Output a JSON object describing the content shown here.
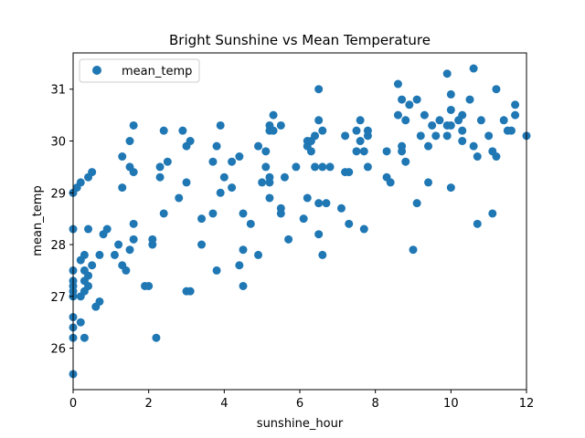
{
  "chart_data": {
    "type": "scatter",
    "title": "Bright Sunshine vs Mean Temperature",
    "xlabel": "sunshine_hour",
    "ylabel": "mean_temp",
    "xlim": [
      0,
      12
    ],
    "ylim": [
      25.2,
      31.7
    ],
    "xticks": [
      0,
      2,
      4,
      6,
      8,
      10,
      12
    ],
    "yticks": [
      26,
      27,
      28,
      29,
      30,
      31
    ],
    "grid": false,
    "legend": {
      "position": "top-left",
      "entries": [
        "mean_temp"
      ]
    },
    "color": "#1f77b4",
    "series": [
      {
        "name": "mean_temp",
        "points": [
          [
            0.0,
            25.5
          ],
          [
            0.0,
            26.2
          ],
          [
            0.0,
            26.4
          ],
          [
            0.0,
            26.6
          ],
          [
            0.0,
            27.0
          ],
          [
            0.0,
            27.1
          ],
          [
            0.0,
            27.2
          ],
          [
            0.0,
            27.3
          ],
          [
            0.0,
            27.5
          ],
          [
            0.0,
            28.3
          ],
          [
            0.0,
            29.0
          ],
          [
            0.1,
            29.1
          ],
          [
            0.2,
            29.2
          ],
          [
            0.2,
            27.7
          ],
          [
            0.2,
            27.0
          ],
          [
            0.2,
            26.5
          ],
          [
            0.3,
            26.2
          ],
          [
            0.3,
            27.1
          ],
          [
            0.3,
            27.3
          ],
          [
            0.3,
            27.5
          ],
          [
            0.3,
            27.8
          ],
          [
            0.4,
            28.3
          ],
          [
            0.4,
            29.3
          ],
          [
            0.4,
            27.2
          ],
          [
            0.4,
            27.4
          ],
          [
            0.5,
            29.4
          ],
          [
            0.5,
            27.6
          ],
          [
            0.6,
            26.8
          ],
          [
            0.7,
            26.9
          ],
          [
            0.7,
            27.8
          ],
          [
            0.8,
            28.2
          ],
          [
            0.9,
            28.3
          ],
          [
            1.1,
            27.8
          ],
          [
            1.2,
            28.0
          ],
          [
            1.3,
            27.6
          ],
          [
            1.3,
            29.1
          ],
          [
            1.3,
            29.7
          ],
          [
            1.4,
            27.5
          ],
          [
            1.5,
            27.9
          ],
          [
            1.5,
            29.5
          ],
          [
            1.5,
            30.0
          ],
          [
            1.6,
            30.3
          ],
          [
            1.6,
            29.4
          ],
          [
            1.6,
            28.4
          ],
          [
            1.6,
            28.1
          ],
          [
            1.9,
            27.2
          ],
          [
            2.0,
            27.2
          ],
          [
            2.1,
            28.0
          ],
          [
            2.1,
            28.1
          ],
          [
            2.2,
            26.2
          ],
          [
            2.3,
            29.3
          ],
          [
            2.3,
            29.5
          ],
          [
            2.4,
            28.6
          ],
          [
            2.4,
            30.2
          ],
          [
            2.5,
            29.6
          ],
          [
            2.8,
            28.9
          ],
          [
            2.9,
            30.2
          ],
          [
            3.0,
            29.9
          ],
          [
            3.0,
            29.2
          ],
          [
            3.0,
            27.1
          ],
          [
            3.1,
            27.1
          ],
          [
            3.1,
            30.0
          ],
          [
            3.4,
            28.5
          ],
          [
            3.4,
            28.0
          ],
          [
            3.7,
            29.6
          ],
          [
            3.7,
            28.6
          ],
          [
            3.8,
            27.5
          ],
          [
            3.8,
            29.9
          ],
          [
            3.9,
            30.3
          ],
          [
            3.9,
            29.0
          ],
          [
            4.0,
            29.3
          ],
          [
            4.2,
            29.1
          ],
          [
            4.2,
            29.6
          ],
          [
            4.4,
            29.7
          ],
          [
            4.4,
            27.6
          ],
          [
            4.5,
            27.2
          ],
          [
            4.5,
            28.6
          ],
          [
            4.5,
            27.9
          ],
          [
            4.7,
            28.4
          ],
          [
            4.9,
            29.9
          ],
          [
            4.9,
            27.8
          ],
          [
            5.0,
            29.2
          ],
          [
            5.1,
            29.5
          ],
          [
            5.1,
            29.8
          ],
          [
            5.2,
            30.3
          ],
          [
            5.2,
            30.2
          ],
          [
            5.2,
            29.2
          ],
          [
            5.2,
            28.9
          ],
          [
            5.2,
            29.3
          ],
          [
            5.3,
            30.2
          ],
          [
            5.3,
            30.5
          ],
          [
            5.5,
            30.3
          ],
          [
            5.5,
            28.6
          ],
          [
            5.5,
            28.7
          ],
          [
            5.6,
            29.3
          ],
          [
            5.7,
            28.1
          ],
          [
            5.9,
            29.5
          ],
          [
            6.1,
            28.5
          ],
          [
            6.2,
            30.0
          ],
          [
            6.2,
            29.9
          ],
          [
            6.2,
            28.9
          ],
          [
            6.3,
            29.8
          ],
          [
            6.3,
            30.0
          ],
          [
            6.4,
            30.1
          ],
          [
            6.4,
            29.5
          ],
          [
            6.5,
            31.0
          ],
          [
            6.5,
            30.4
          ],
          [
            6.5,
            28.8
          ],
          [
            6.5,
            28.2
          ],
          [
            6.6,
            30.2
          ],
          [
            6.6,
            29.5
          ],
          [
            6.6,
            27.8
          ],
          [
            6.7,
            28.8
          ],
          [
            6.8,
            29.5
          ],
          [
            7.1,
            28.7
          ],
          [
            7.2,
            30.1
          ],
          [
            7.2,
            29.4
          ],
          [
            7.3,
            29.4
          ],
          [
            7.3,
            28.4
          ],
          [
            7.5,
            30.2
          ],
          [
            7.5,
            29.8
          ],
          [
            7.6,
            30.4
          ],
          [
            7.6,
            30.0
          ],
          [
            7.7,
            29.8
          ],
          [
            7.7,
            28.3
          ],
          [
            7.8,
            30.2
          ],
          [
            7.8,
            30.1
          ],
          [
            7.8,
            29.5
          ],
          [
            8.3,
            29.8
          ],
          [
            8.3,
            29.3
          ],
          [
            8.4,
            29.2
          ],
          [
            8.6,
            31.1
          ],
          [
            8.6,
            30.5
          ],
          [
            8.7,
            30.8
          ],
          [
            8.7,
            29.9
          ],
          [
            8.7,
            29.8
          ],
          [
            8.8,
            29.6
          ],
          [
            8.8,
            30.4
          ],
          [
            8.9,
            30.7
          ],
          [
            9.0,
            27.9
          ],
          [
            9.1,
            30.8
          ],
          [
            9.1,
            28.8
          ],
          [
            9.2,
            30.1
          ],
          [
            9.3,
            30.5
          ],
          [
            9.4,
            29.9
          ],
          [
            9.4,
            29.2
          ],
          [
            9.5,
            30.3
          ],
          [
            9.6,
            30.1
          ],
          [
            9.7,
            30.4
          ],
          [
            9.9,
            31.3
          ],
          [
            9.9,
            30.1
          ],
          [
            9.9,
            30.3
          ],
          [
            10.0,
            30.9
          ],
          [
            10.0,
            30.6
          ],
          [
            10.0,
            30.3
          ],
          [
            10.0,
            29.1
          ],
          [
            10.2,
            30.4
          ],
          [
            10.3,
            30.5
          ],
          [
            10.3,
            30.2
          ],
          [
            10.3,
            30.0
          ],
          [
            10.5,
            30.8
          ],
          [
            10.6,
            31.4
          ],
          [
            10.6,
            29.9
          ],
          [
            10.7,
            29.7
          ],
          [
            10.7,
            28.4
          ],
          [
            10.8,
            30.4
          ],
          [
            11.0,
            30.1
          ],
          [
            11.1,
            29.8
          ],
          [
            11.1,
            28.6
          ],
          [
            11.2,
            31.0
          ],
          [
            11.2,
            29.7
          ],
          [
            11.4,
            30.4
          ],
          [
            11.5,
            30.2
          ],
          [
            11.6,
            30.2
          ],
          [
            11.7,
            30.7
          ],
          [
            11.7,
            30.5
          ],
          [
            12.0,
            30.1
          ]
        ]
      }
    ]
  }
}
